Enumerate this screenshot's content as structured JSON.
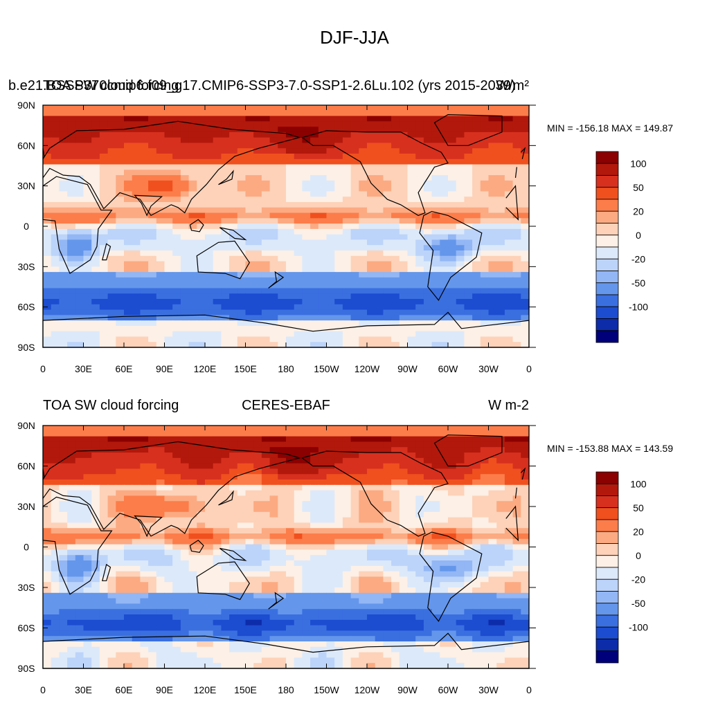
{
  "figure_title": "DJF-JJA",
  "chart_data": [
    {
      "type": "heatmap",
      "projection": "cylindrical-equidistant",
      "title_left": "b.e21.BSSP370cmip6.f09_g17.CMIP6-SSP3-7.0-SSP1-2.6Lu.102 (yrs 2015-2039)",
      "title_left_overlay": "TOA SW cloud forcing",
      "title_center": "",
      "title_right": "W/m²",
      "min_max_label": "MIN = -156.18 MAX = 149.87",
      "min": -156.18,
      "max": 149.87,
      "x_ticks": [
        "0",
        "30E",
        "60E",
        "90E",
        "120E",
        "150E",
        "180",
        "150W",
        "120W",
        "90W",
        "60W",
        "30W",
        "0"
      ],
      "y_ticks": [
        "90N",
        "60N",
        "30N",
        "0",
        "30S",
        "60S",
        "90S"
      ],
      "xlim": [
        0,
        360
      ],
      "ylim": [
        -90,
        90
      ],
      "colorbar_labels": [
        "100",
        "50",
        "20",
        "0",
        "-20",
        "-50",
        "-100"
      ],
      "colorbar_colors": [
        "#8b0000",
        "#b2180b",
        "#d7301f",
        "#f0501e",
        "#fc7d4a",
        "#fcaa82",
        "#fdd2b9",
        "#fdf0e6",
        "#dce9fa",
        "#bcd4fa",
        "#93b6f5",
        "#6496eb",
        "#3a6fe0",
        "#1c4cd0",
        "#0c2caa",
        "#00007a"
      ]
    },
    {
      "type": "heatmap",
      "projection": "cylindrical-equidistant",
      "title_left": "TOA SW cloud forcing",
      "title_center": "CERES-EBAF",
      "title_right": "W m-2",
      "min_max_label": "MIN = -153.88 MAX = 143.59",
      "min": -153.88,
      "max": 143.59,
      "x_ticks": [
        "0",
        "30E",
        "60E",
        "90E",
        "120E",
        "150E",
        "180",
        "150W",
        "120W",
        "90W",
        "60W",
        "30W",
        "0"
      ],
      "y_ticks": [
        "90N",
        "60N",
        "30N",
        "0",
        "30S",
        "60S",
        "90S"
      ],
      "xlim": [
        0,
        360
      ],
      "ylim": [
        -90,
        90
      ],
      "colorbar_labels": [
        "100",
        "50",
        "20",
        "0",
        "-20",
        "-50",
        "-100"
      ],
      "colorbar_colors": [
        "#8b0000",
        "#b2180b",
        "#d7301f",
        "#f0501e",
        "#fc7d4a",
        "#fcaa82",
        "#fdd2b9",
        "#fdf0e6",
        "#dce9fa",
        "#bcd4fa",
        "#93b6f5",
        "#6496eb",
        "#3a6fe0",
        "#1c4cd0",
        "#0c2caa",
        "#00007a"
      ]
    }
  ]
}
